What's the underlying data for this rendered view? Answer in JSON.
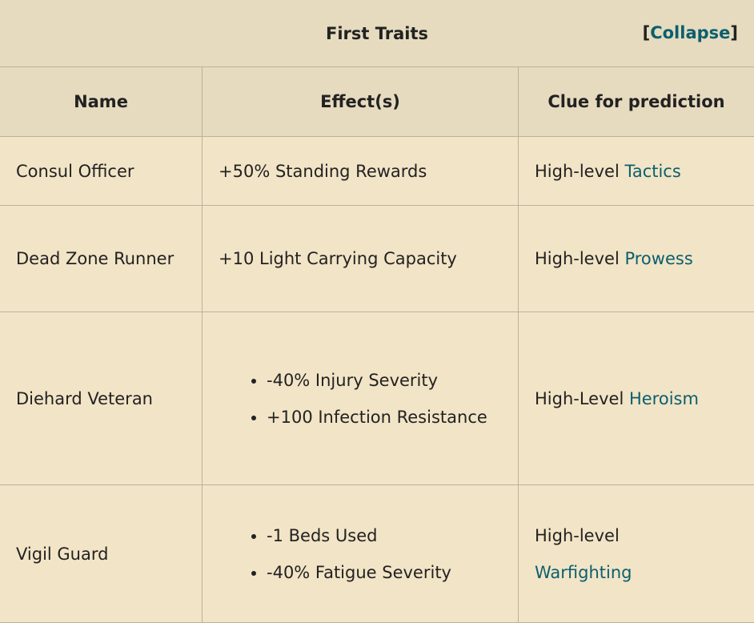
{
  "title": "First Traits",
  "collapse_label": "Collapse",
  "columns": [
    "Name",
    "Effect(s)",
    "Clue for prediction"
  ],
  "rows": [
    {
      "name": "Consul Officer",
      "effects": [
        "+50% Standing Rewards"
      ],
      "clue_prefix": "High-level",
      "clue_link": "Tactics"
    },
    {
      "name": "Dead Zone Runner",
      "effects": [
        "+10 Light Carrying Capacity"
      ],
      "clue_prefix": "High-level",
      "clue_link": "Prowess"
    },
    {
      "name": "Diehard Veteran",
      "effects": [
        "-40% Injury Severity",
        "+100 Infection Resistance"
      ],
      "clue_prefix": "High-Level",
      "clue_link": "Heroism"
    },
    {
      "name": "Vigil Guard",
      "effects": [
        "-1 Beds Used",
        "-40% Fatigue Severity"
      ],
      "clue_prefix": "High-level",
      "clue_link": "Warfighting"
    }
  ],
  "colors": {
    "header_bg": "#e6dbbf",
    "body_bg": "#f2e4c6",
    "link": "#0a5f6e",
    "border": "#bdb19a"
  }
}
